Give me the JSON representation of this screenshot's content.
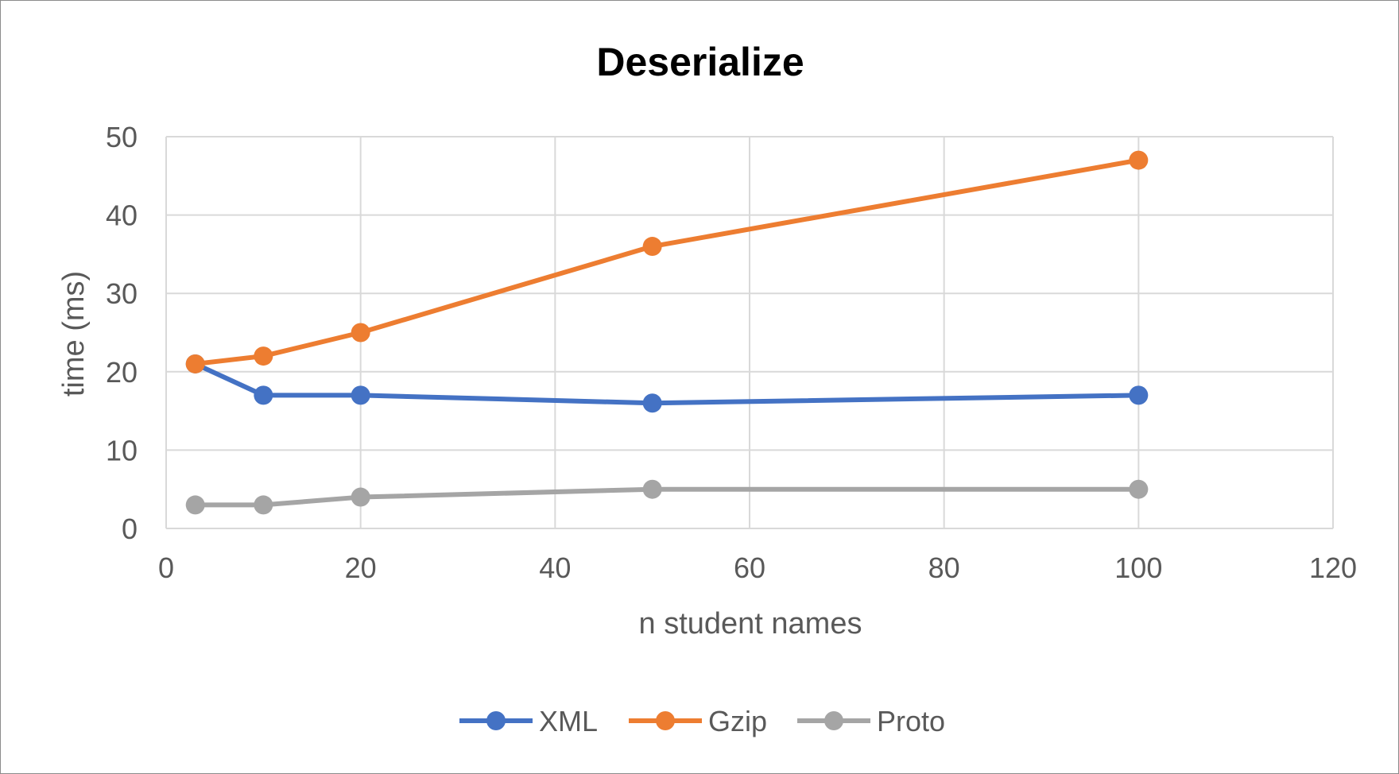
{
  "chart_data": {
    "type": "line",
    "title": "Deserialize",
    "xlabel": "n student names",
    "ylabel": "time (ms)",
    "xlim": [
      0,
      120
    ],
    "ylim": [
      0,
      50
    ],
    "xticks": [
      0,
      20,
      40,
      60,
      80,
      100,
      120
    ],
    "yticks": [
      0,
      10,
      20,
      30,
      40,
      50
    ],
    "grid": true,
    "legend_position": "bottom",
    "x": [
      3,
      10,
      20,
      50,
      100
    ],
    "series": [
      {
        "name": "XML",
        "color": "#4472C4",
        "values": [
          21,
          17,
          17,
          16,
          17
        ]
      },
      {
        "name": "Gzip",
        "color": "#ED7D31",
        "values": [
          21,
          22,
          25,
          36,
          47
        ]
      },
      {
        "name": "Proto",
        "color": "#A5A5A5",
        "values": [
          3,
          3,
          4,
          5,
          5
        ]
      }
    ]
  }
}
